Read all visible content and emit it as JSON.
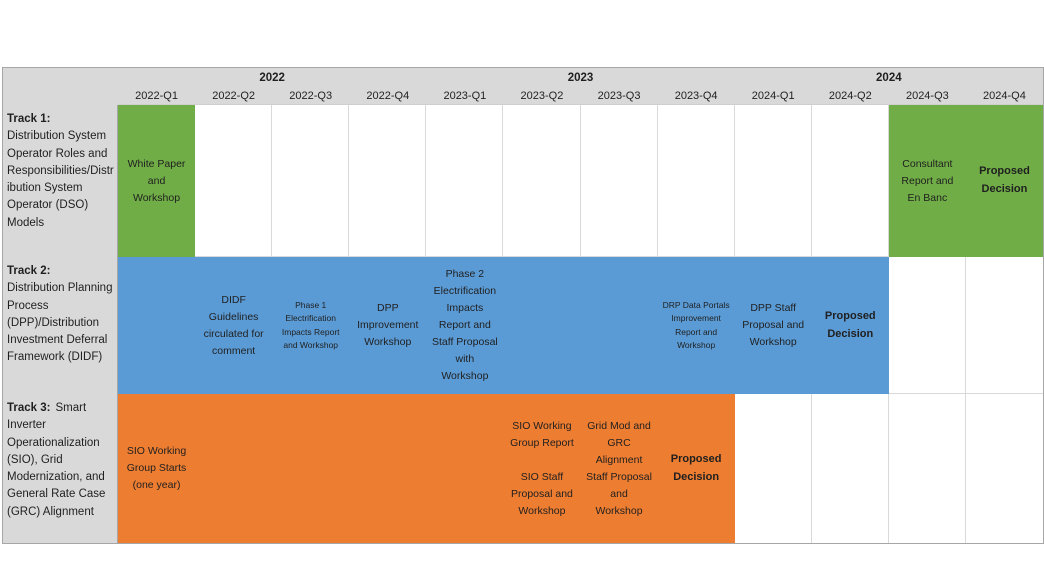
{
  "chart_data": {
    "type": "gantt",
    "years": [
      {
        "label": "2022",
        "span_quarters": 4
      },
      {
        "label": "2023",
        "span_quarters": 4
      },
      {
        "label": "2024",
        "span_quarters": 4
      }
    ],
    "quarters": [
      "2022-Q1",
      "2022-Q2",
      "2022-Q3",
      "2022-Q4",
      "2023-Q1",
      "2023-Q2",
      "2023-Q3",
      "2023-Q4",
      "2024-Q1",
      "2024-Q2",
      "2024-Q3",
      "2024-Q4"
    ],
    "colors": {
      "track1_bar": "#70AD47",
      "track2_bar": "#5B9BD5",
      "track3_bar": "#ED7D31",
      "header_bg": "#D9D9D9",
      "grid_line": "#D9D9D9",
      "outer_border": "#A6A6A6",
      "text": "#1F1F1F"
    },
    "tracks": [
      {
        "name": "Track 1:",
        "description": "Distribution System Operator Roles and Responsibilities/Distribution System Operator (DSO) Models",
        "color": "#70AD47",
        "bars": [
          {
            "start": "2022-Q1",
            "end": "2022-Q1"
          },
          {
            "start": "2024-Q3",
            "end": "2024-Q4"
          }
        ],
        "events": [
          {
            "quarter": "2022-Q1",
            "label": "White Paper and Workshop",
            "bold": false
          },
          {
            "quarter": "2024-Q3",
            "label": "Consultant Report and En Banc",
            "bold": false
          },
          {
            "quarter": "2024-Q4",
            "label": "Proposed Decision",
            "bold": true
          }
        ]
      },
      {
        "name": "Track 2:",
        "description": "Distribution Planning Process (DPP)/Distribution Investment Deferral Framework (DIDF)",
        "color": "#5B9BD5",
        "bars": [
          {
            "start": "2022-Q1",
            "end": "2024-Q2"
          }
        ],
        "events": [
          {
            "quarter": "2022-Q2",
            "label": "DIDF Guidelines circulated for comment",
            "bold": false
          },
          {
            "quarter": "2022-Q3",
            "label": "Phase 1 Electrification Impacts Report and Workshop",
            "bold": false,
            "small_text": true
          },
          {
            "quarter": "2022-Q4",
            "label": "DPP Improvement Workshop",
            "bold": false
          },
          {
            "quarter": "2023-Q1",
            "label": "Phase 2 Electrification Impacts Report and Staff Proposal with Workshop",
            "bold": false
          },
          {
            "quarter": "2023-Q4",
            "label": "DRP Data Portals Improvement Report and Workshop",
            "bold": false,
            "small_text": true
          },
          {
            "quarter": "2024-Q1",
            "label": "DPP Staff Proposal and Workshop",
            "bold": false
          },
          {
            "quarter": "2024-Q2",
            "label": "Proposed Decision",
            "bold": true
          }
        ]
      },
      {
        "name": "Track 3:",
        "description": "Smart Inverter Operationalization (SIO), Grid Modernization, and General Rate Case (GRC) Alignment",
        "color": "#ED7D31",
        "bars": [
          {
            "start": "2022-Q1",
            "end": "2023-Q4"
          }
        ],
        "events": [
          {
            "quarter": "2022-Q1",
            "label": "SIO Working Group Starts (one year)",
            "bold": false
          },
          {
            "quarter": "2023-Q2",
            "label": "SIO Working Group Report",
            "label2": "SIO Staff Proposal and Workshop",
            "bold": false
          },
          {
            "quarter": "2023-Q3",
            "label": "Grid Mod and GRC Alignment Staff Proposal and Workshop",
            "bold": false
          },
          {
            "quarter": "2023-Q4",
            "label": "Proposed Decision",
            "bold": true
          }
        ]
      }
    ]
  }
}
